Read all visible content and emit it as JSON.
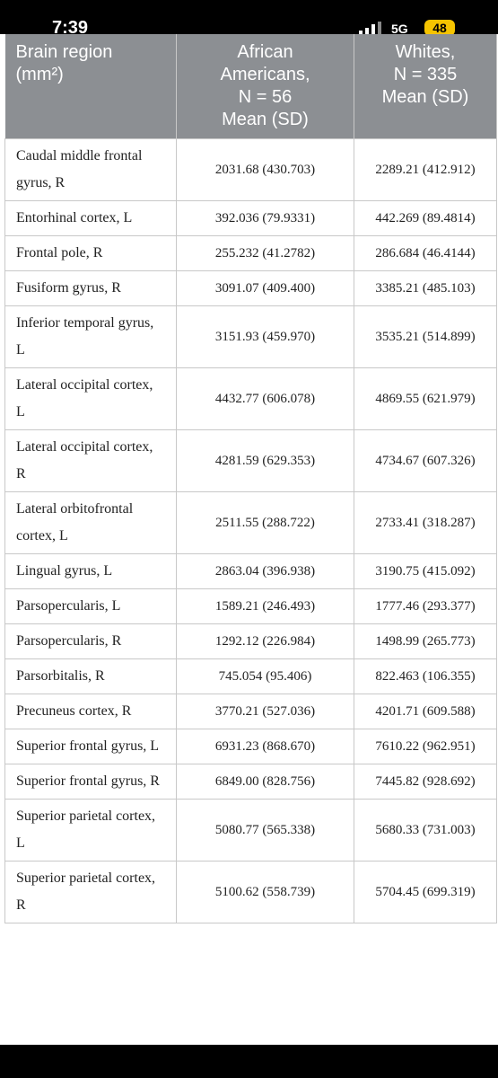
{
  "status_bar": {
    "time": "7:39",
    "network": "5G",
    "battery": "48"
  },
  "table": {
    "header": [
      [
        "Brain region",
        "(mm²)"
      ],
      [
        "African",
        "Americans,",
        "N = 56",
        "Mean (SD)"
      ],
      [
        "Whites,",
        "N = 335",
        "Mean (SD)"
      ]
    ],
    "rows": [
      [
        "Caudal middle frontal gyrus, R",
        "2031.68 (430.703)",
        "2289.21 (412.912)"
      ],
      [
        "Entorhinal cortex, L",
        "392.036 (79.9331)",
        "442.269 (89.4814)"
      ],
      [
        "Frontal pole, R",
        "255.232 (41.2782)",
        "286.684 (46.4144)"
      ],
      [
        "Fusiform gyrus, R",
        "3091.07 (409.400)",
        "3385.21 (485.103)"
      ],
      [
        "Inferior temporal gyrus, L",
        "3151.93 (459.970)",
        "3535.21 (514.899)"
      ],
      [
        "Lateral occipital cortex, L",
        "4432.77 (606.078)",
        "4869.55 (621.979)"
      ],
      [
        "Lateral occipital cortex, R",
        "4281.59 (629.353)",
        "4734.67 (607.326)"
      ],
      [
        "Lateral orbitofrontal cortex, L",
        "2511.55 (288.722)",
        "2733.41 (318.287)"
      ],
      [
        "Lingual gyrus, L",
        "2863.04 (396.938)",
        "3190.75 (415.092)"
      ],
      [
        "Parsopercularis, L",
        "1589.21 (246.493)",
        "1777.46 (293.377)"
      ],
      [
        "Parsopercularis, R",
        "1292.12 (226.984)",
        "1498.99 (265.773)"
      ],
      [
        "Parsorbitalis, R",
        "745.054 (95.406)",
        "822.463 (106.355)"
      ],
      [
        "Precuneus cortex, R",
        "3770.21 (527.036)",
        "4201.71 (609.588)"
      ],
      [
        "Superior frontal gyrus, L",
        "6931.23 (868.670)",
        "7610.22 (962.951)"
      ],
      [
        "Superior frontal gyrus, R",
        "6849.00 (828.756)",
        "7445.82 (928.692)"
      ],
      [
        "Superior parietal cortex, L",
        "5080.77 (565.338)",
        "5680.33 (731.003)"
      ],
      [
        "Superior parietal cortex, R",
        "5100.62 (558.739)",
        "5704.45 (699.319)"
      ]
    ]
  }
}
